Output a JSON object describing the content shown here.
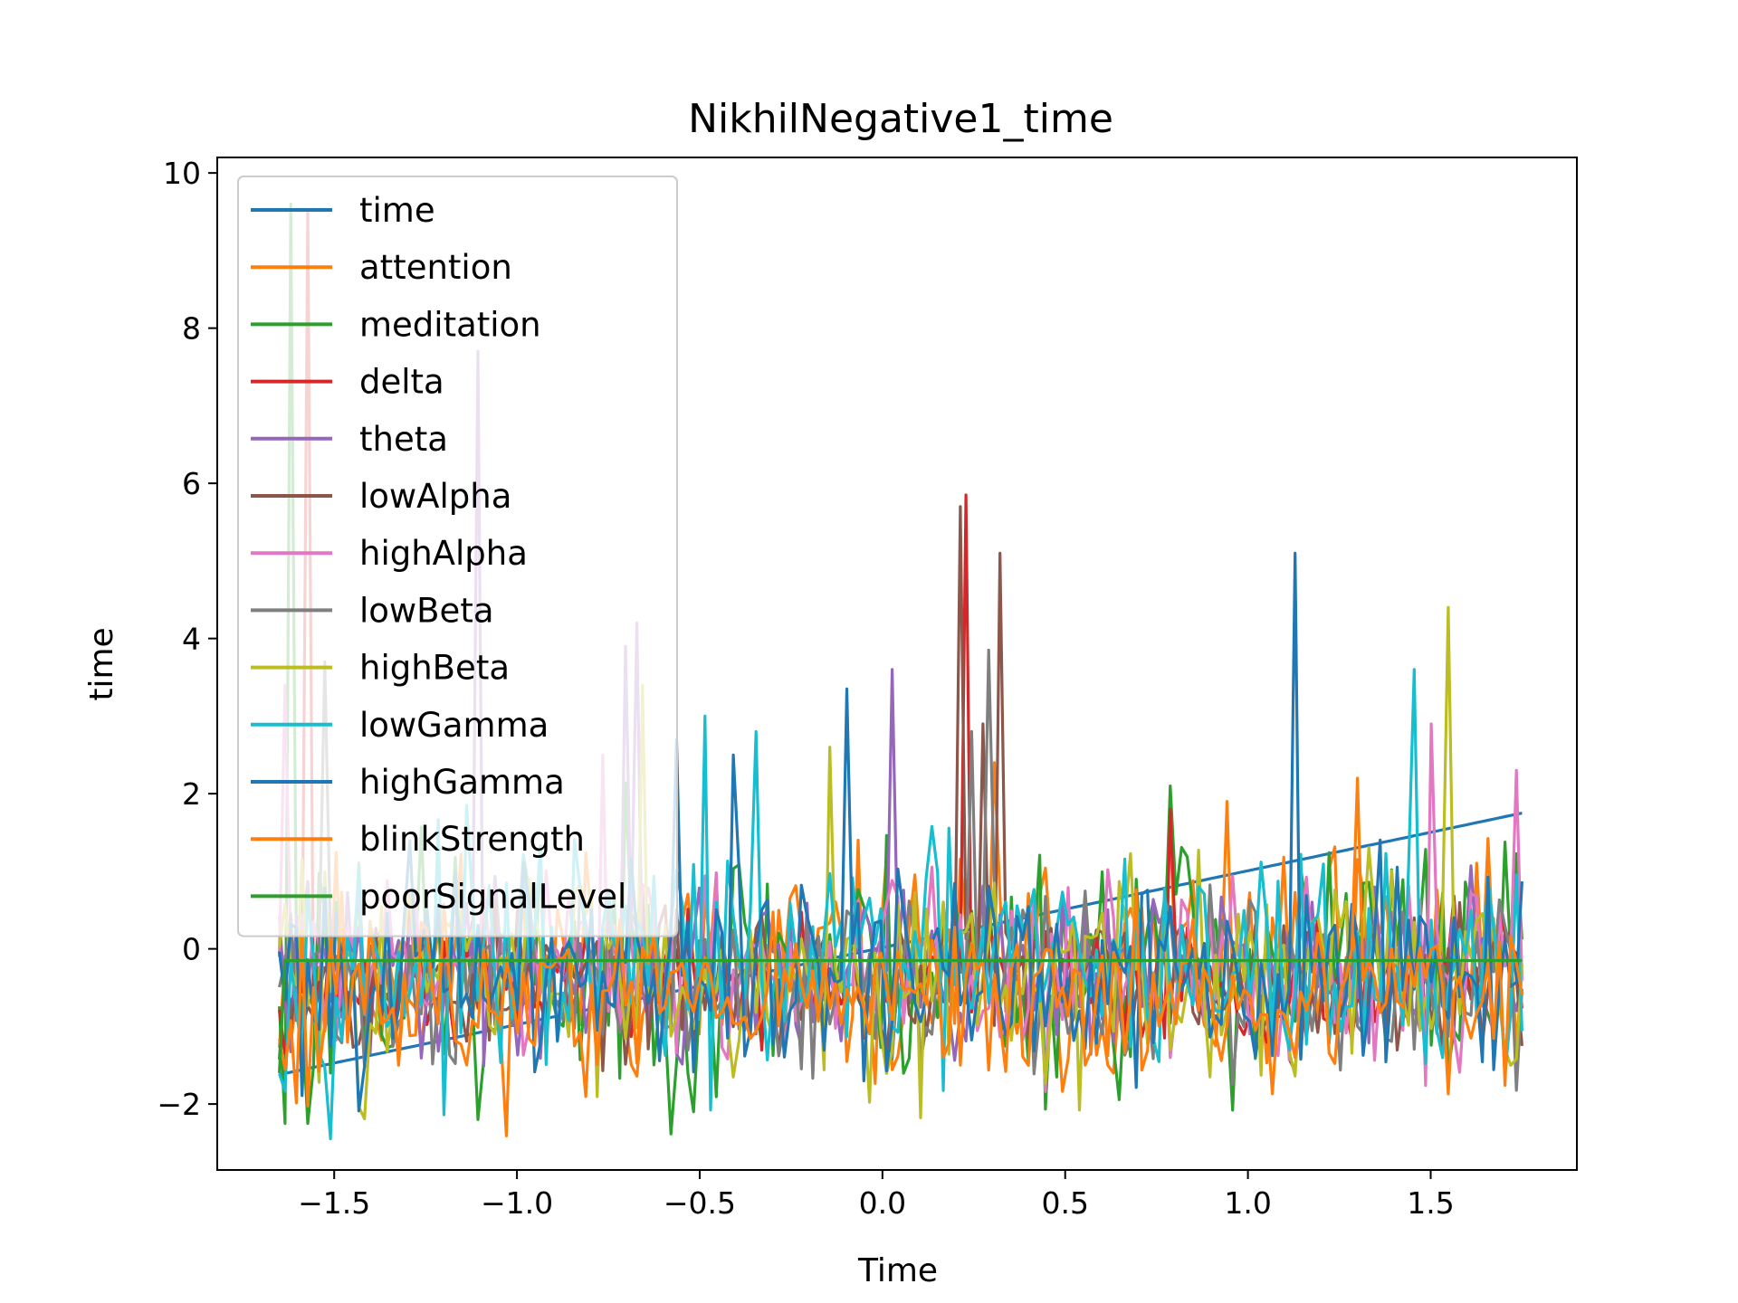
{
  "chart_data": {
    "type": "line",
    "title": "NikhilNegative1_time",
    "xlabel": "Time",
    "ylabel": "time",
    "xlim": [
      -1.82,
      1.9
    ],
    "ylim": [
      -2.85,
      10.2
    ],
    "xticks": [
      -1.5,
      -1.0,
      -0.5,
      0.0,
      0.5,
      1.0,
      1.5
    ],
    "xtick_labels": [
      "−1.5",
      "−1.0",
      "−0.5",
      "0.0",
      "0.5",
      "1.0",
      "1.5"
    ],
    "yticks": [
      -2,
      0,
      2,
      4,
      6,
      8,
      10
    ],
    "ytick_labels": [
      "−2",
      "0",
      "2",
      "4",
      "6",
      "8",
      "10"
    ],
    "grid": false,
    "legend_position": "upper-left",
    "sample_count": 220,
    "x_range": [
      -1.65,
      1.75
    ],
    "series": [
      {
        "name": "time",
        "color": "#1f77b4",
        "kind": "linear",
        "start": -1.62,
        "end": 1.75
      },
      {
        "name": "attention",
        "color": "#ff7f0e",
        "kind": "noise",
        "seed": 11,
        "base": -0.3,
        "amp": 1.1,
        "spikes": [
          [
            0.3,
            2.4
          ],
          [
            0.78,
            1.6
          ]
        ]
      },
      {
        "name": "meditation",
        "color": "#2ca02c",
        "kind": "noise",
        "seed": 23,
        "base": -0.2,
        "amp": 1.2,
        "spikes": [
          [
            -1.63,
            -2.25
          ],
          [
            -1.58,
            -2.25
          ],
          [
            -1.1,
            -2.2
          ],
          [
            -0.52,
            -2.1
          ],
          [
            -1.62,
            9.6
          ],
          [
            0.78,
            2.1
          ]
        ]
      },
      {
        "name": "delta",
        "color": "#d62728",
        "kind": "noise",
        "seed": 37,
        "base": -0.4,
        "amp": 0.6,
        "spikes": [
          [
            -1.57,
            9.5
          ],
          [
            0.23,
            5.85
          ],
          [
            0.79,
            1.8
          ]
        ]
      },
      {
        "name": "theta",
        "color": "#9467bd",
        "kind": "noise",
        "seed": 41,
        "base": -0.3,
        "amp": 0.8,
        "spikes": [
          [
            -1.11,
            7.7
          ],
          [
            -0.67,
            4.2
          ],
          [
            0.03,
            3.6
          ],
          [
            -0.71,
            3.9
          ]
        ]
      },
      {
        "name": "lowAlpha",
        "color": "#8c564b",
        "kind": "noise",
        "seed": 53,
        "base": -0.4,
        "amp": 0.7,
        "spikes": [
          [
            0.21,
            5.7
          ],
          [
            0.32,
            5.1
          ],
          [
            0.27,
            2.9
          ]
        ]
      },
      {
        "name": "highAlpha",
        "color": "#e377c2",
        "kind": "noise",
        "seed": 61,
        "base": -0.3,
        "amp": 0.9,
        "spikes": [
          [
            -1.63,
            3.4
          ],
          [
            -0.76,
            2.5
          ],
          [
            1.5,
            2.9
          ],
          [
            1.74,
            2.3
          ]
        ]
      },
      {
        "name": "lowBeta",
        "color": "#7f7f7f",
        "kind": "noise",
        "seed": 71,
        "base": -0.4,
        "amp": 0.8,
        "spikes": [
          [
            -1.52,
            3.7
          ],
          [
            0.29,
            3.85
          ],
          [
            0.24,
            2.8
          ]
        ]
      },
      {
        "name": "highBeta",
        "color": "#bcbd22",
        "kind": "noise",
        "seed": 83,
        "base": -0.3,
        "amp": 1.0,
        "spikes": [
          [
            -0.65,
            3.4
          ],
          [
            1.55,
            4.4
          ],
          [
            -0.14,
            2.6
          ],
          [
            0.89,
            -1.65
          ]
        ]
      },
      {
        "name": "lowGamma",
        "color": "#17becf",
        "kind": "noise",
        "seed": 97,
        "base": -0.2,
        "amp": 1.1,
        "spikes": [
          [
            -0.49,
            3.0
          ],
          [
            1.46,
            3.6
          ],
          [
            -0.34,
            2.8
          ]
        ]
      },
      {
        "name": "highGamma",
        "color": "#1f77b4",
        "kind": "noise",
        "seed": 101,
        "base": -0.3,
        "amp": 1.0,
        "spikes": [
          [
            1.13,
            5.1
          ],
          [
            -0.1,
            3.35
          ],
          [
            -0.41,
            2.5
          ],
          [
            -0.57,
            2.7
          ]
        ]
      },
      {
        "name": "blinkStrength",
        "color": "#ff7f0e",
        "kind": "noise",
        "seed": 113,
        "base": -0.6,
        "amp": 0.8,
        "spikes": [
          [
            0.22,
            -1.5
          ],
          [
            0.55,
            -1.5
          ],
          [
            1.3,
            2.2
          ],
          [
            -1.63,
            -1.55
          ]
        ]
      },
      {
        "name": "poorSignalLevel",
        "color": "#2ca02c",
        "kind": "flat",
        "value": -0.15,
        "start_value": -1.6
      }
    ]
  }
}
